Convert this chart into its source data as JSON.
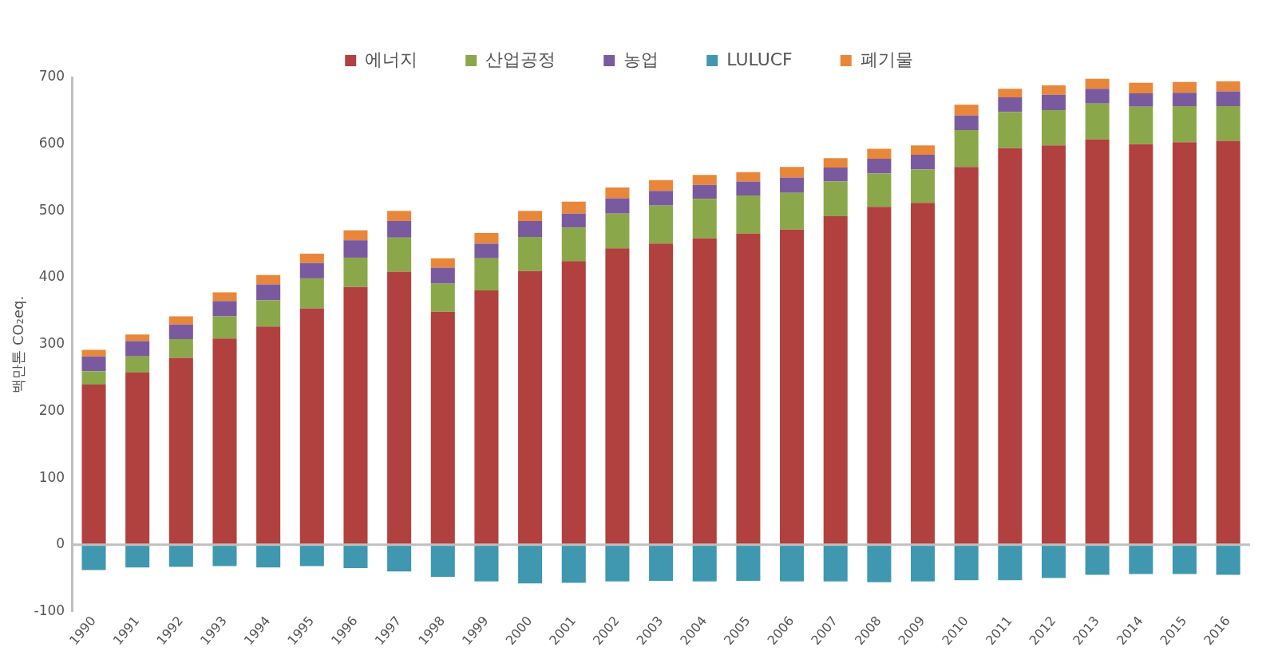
{
  "chart_data": {
    "type": "bar",
    "stacked": true,
    "ylabel": "백만톤 CO₂eq.",
    "categories": [
      "1990",
      "1991",
      "1992",
      "1993",
      "1994",
      "1995",
      "1996",
      "1997",
      "1998",
      "1999",
      "2000",
      "2001",
      "2002",
      "2003",
      "2004",
      "2005",
      "2006",
      "2007",
      "2008",
      "2009",
      "2010",
      "2011",
      "2012",
      "2013",
      "2014",
      "2015",
      "2016"
    ],
    "series": [
      {
        "name": "에너지",
        "color": "#b0413e",
        "values": [
          240,
          258,
          280,
          309,
          327,
          354,
          386,
          409,
          349,
          381,
          410,
          425,
          444,
          451,
          459,
          466,
          472,
          492,
          506,
          512,
          566,
          594,
          598,
          607,
          600,
          603,
          605
        ]
      },
      {
        "name": "산업공정",
        "color": "#8aa84a",
        "values": [
          20,
          24,
          28,
          33,
          39,
          45,
          44,
          51,
          42,
          48,
          51,
          50,
          52,
          57,
          59,
          57,
          55,
          52,
          50,
          50,
          55,
          54,
          53,
          54,
          56,
          54,
          52
        ]
      },
      {
        "name": "농업",
        "color": "#7a5a9e",
        "values": [
          22,
          23,
          22,
          23,
          24,
          23,
          26,
          25,
          24,
          22,
          24,
          21,
          23,
          22,
          21,
          21,
          23,
          21,
          22,
          22,
          22,
          22,
          23,
          22,
          20,
          20,
          22
        ]
      },
      {
        "name": "LULUCF",
        "color": "#3f97b0",
        "values": [
          -38,
          -34,
          -33,
          -32,
          -34,
          -32,
          -35,
          -40,
          -48,
          -55,
          -58,
          -57,
          -55,
          -54,
          -55,
          -54,
          -55,
          -55,
          -56,
          -55,
          -53,
          -53,
          -50,
          -45,
          -44,
          -44,
          -45
        ]
      },
      {
        "name": "폐기물",
        "color": "#e8873a",
        "values": [
          10,
          10,
          12,
          13,
          14,
          14,
          15,
          15,
          14,
          16,
          15,
          18,
          16,
          16,
          15,
          14,
          16,
          14,
          15,
          14,
          16,
          13,
          14,
          15,
          16,
          16,
          15
        ]
      }
    ],
    "ylim": [
      -100,
      700
    ],
    "yticks": [
      -100,
      0,
      100,
      200,
      300,
      400,
      500,
      600,
      700
    ],
    "ref_lines": [
      {
        "axis": "y",
        "value": 0,
        "color": "#bfbfbf"
      }
    ],
    "grid": false,
    "legend": "top"
  }
}
